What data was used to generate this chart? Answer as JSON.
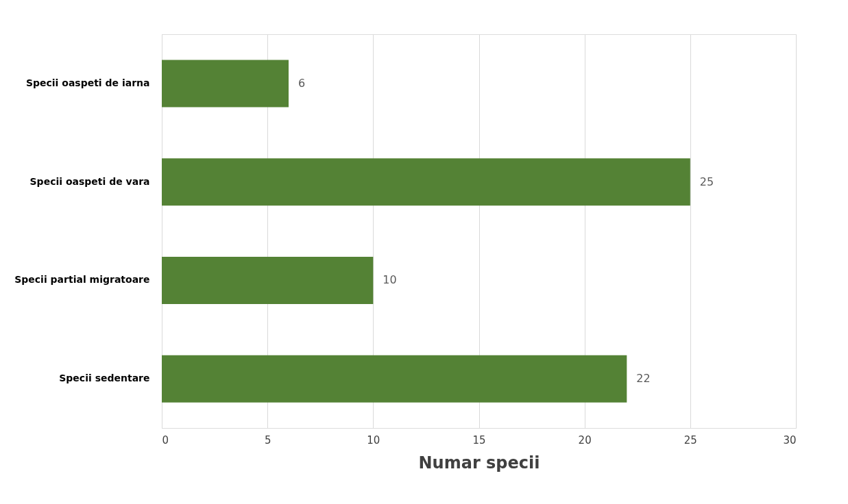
{
  "chart_data": {
    "type": "bar",
    "orientation": "horizontal",
    "xlabel": "Numar specii",
    "categories": [
      "Specii oaspeti de iarna",
      "Specii oaspeti de vara",
      "Specii partial migratoare",
      "Specii sedentare"
    ],
    "values": [
      6,
      25,
      10,
      22
    ],
    "color": "#548235",
    "xlim": [
      0,
      30
    ],
    "xticks": [
      0,
      5,
      10,
      15,
      20,
      25,
      30
    ],
    "grid": "x",
    "data_labels": true
  }
}
